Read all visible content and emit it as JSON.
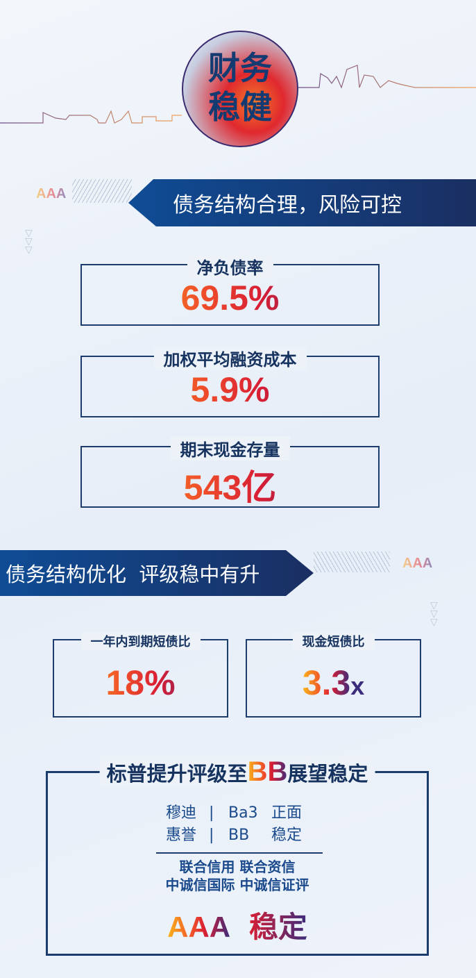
{
  "header": {
    "title_line1": "财务",
    "title_line2": "稳健"
  },
  "section1": {
    "banner": "债务结构合理，风险可控",
    "badge": "AAA",
    "metrics": [
      {
        "label": "净负债率",
        "value": "69.5%"
      },
      {
        "label": "加权平均融资成本",
        "value": "5.9%"
      },
      {
        "label": "期末现金存量",
        "value": "543亿"
      }
    ]
  },
  "section2": {
    "banner": "债务结构优化  评级稳中有升",
    "badge": "AAA",
    "metrics": [
      {
        "label": "一年内到期短债比",
        "value": "18%"
      },
      {
        "label": "现金短债比",
        "value": "3.3",
        "suffix": "x"
      }
    ]
  },
  "ratings": {
    "title_pre": "标普提升评级至",
    "title_bb": "BB",
    "title_post": "展望稳定",
    "rows": [
      {
        "agency": "穆迪",
        "sep": "|",
        "rating": "Ba3",
        "outlook": "正面"
      },
      {
        "agency": "惠誉",
        "sep": "|",
        "rating": "BB",
        "outlook": "稳定"
      }
    ],
    "domestic_line1": "联合信用 联合资信",
    "domestic_line2": "中诚信国际 中诚信证评",
    "domestic_rating": "AAA",
    "domestic_outlook": "稳定"
  },
  "colors": {
    "navy": "#1d3c6e",
    "orange": "#f9b41c",
    "red": "#d81e34",
    "purple": "#3b2c7c"
  }
}
